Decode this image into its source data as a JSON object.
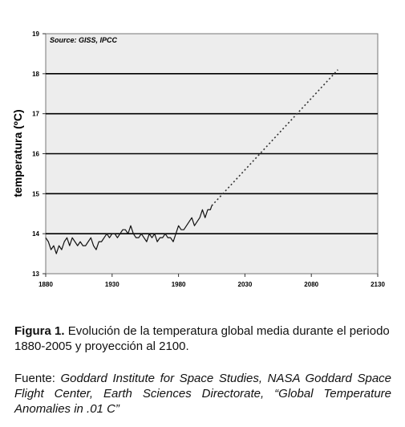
{
  "chart_data": {
    "type": "line",
    "annotation": "Source: GISS, IPCC",
    "y_label": "temperatura (ºC)",
    "xlim": [
      1880,
      2130
    ],
    "xticks": [
      1880,
      1930,
      1980,
      2030,
      2080,
      2130
    ],
    "ylim": [
      13,
      19
    ],
    "yticks": [
      13,
      14,
      15,
      16,
      17,
      18,
      19
    ],
    "grid": true,
    "series": [
      {
        "color": "#111111",
        "style": "solid",
        "x": [
          1880,
          1882,
          1884,
          1886,
          1888,
          1890,
          1892,
          1894,
          1896,
          1898,
          1900,
          1902,
          1904,
          1906,
          1908,
          1910,
          1912,
          1914,
          1916,
          1918,
          1920,
          1922,
          1924,
          1926,
          1928,
          1930,
          1932,
          1934,
          1936,
          1938,
          1940,
          1942,
          1944,
          1946,
          1948,
          1950,
          1952,
          1954,
          1956,
          1958,
          1960,
          1962,
          1964,
          1966,
          1968,
          1970,
          1972,
          1974,
          1976,
          1978,
          1980,
          1982,
          1984,
          1986,
          1988,
          1990,
          1992,
          1994,
          1996,
          1998,
          2000,
          2002,
          2004,
          2005
        ],
        "values": [
          13.9,
          13.8,
          13.6,
          13.7,
          13.5,
          13.7,
          13.6,
          13.8,
          13.9,
          13.7,
          13.9,
          13.8,
          13.7,
          13.8,
          13.7,
          13.7,
          13.8,
          13.9,
          13.7,
          13.6,
          13.8,
          13.8,
          13.9,
          14.0,
          13.9,
          14.0,
          14.0,
          13.9,
          14.0,
          14.1,
          14.1,
          14.0,
          14.2,
          14.0,
          13.9,
          13.9,
          14.0,
          13.9,
          13.8,
          14.0,
          13.9,
          14.0,
          13.8,
          13.9,
          13.9,
          14.0,
          13.9,
          13.9,
          13.8,
          14.0,
          14.2,
          14.1,
          14.1,
          14.2,
          14.3,
          14.4,
          14.2,
          14.3,
          14.4,
          14.6,
          14.4,
          14.6,
          14.6,
          14.7
        ]
      },
      {
        "color": "#333333",
        "style": "dotted",
        "x": [
          2005,
          2100
        ],
        "values": [
          14.7,
          18.1
        ]
      }
    ]
  },
  "caption": {
    "label": "Figura 1.",
    "text": "Evolución de la temperatura global media durante el periodo 1880-2005 y proyección al 2100."
  },
  "source": {
    "label": "Fuente:",
    "text": "Goddard Institute for Space Studies, NASA Goddard Space Flight Center, Earth Sciences Directorate, “Global Temperature Anomalies in .01 C”"
  }
}
